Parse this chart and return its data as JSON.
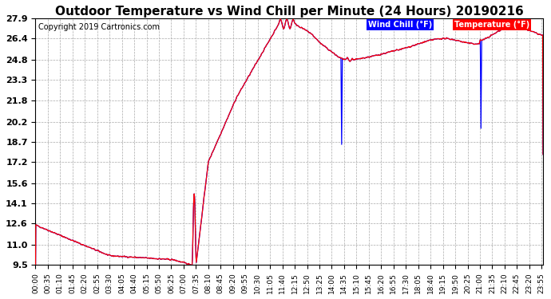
{
  "title": "Outdoor Temperature vs Wind Chill per Minute (24 Hours) 20190216",
  "copyright": "Copyright 2019 Cartronics.com",
  "legend_wind_chill": "Wind Chill (°F)",
  "legend_temperature": "Temperature (°F)",
  "yticks": [
    9.5,
    11.0,
    12.6,
    14.1,
    15.6,
    17.2,
    18.7,
    20.2,
    21.8,
    23.3,
    24.8,
    26.4,
    27.9
  ],
  "bg_color": "#ffffff",
  "plot_bg_color": "#ffffff",
  "grid_color": "#aaaaaa",
  "temp_color": "#ff0000",
  "wind_chill_color": "#0000ff",
  "title_fontsize": 11,
  "copyright_fontsize": 7,
  "xtick_fontsize": 6.5,
  "ytick_fontsize": 8,
  "ymin": 9.5,
  "ymax": 27.9,
  "n_minutes": 1440,
  "wind_chill_spike1_minute": 868,
  "wind_chill_spike1_low": 18.5,
  "wind_chill_spike2_minute": 1263,
  "wind_chill_spike2_low": 19.7
}
